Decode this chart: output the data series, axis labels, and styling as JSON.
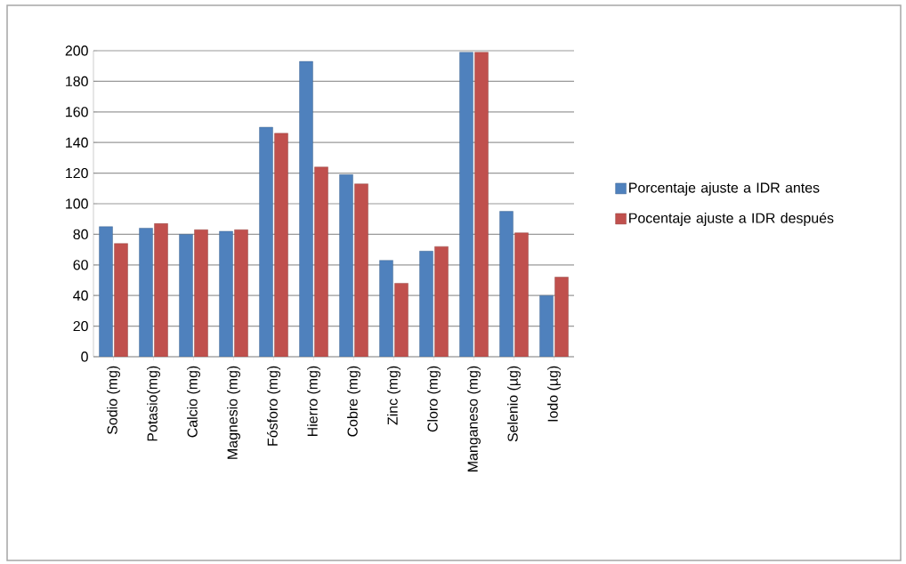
{
  "chart_data": {
    "type": "bar",
    "categories": [
      "Sodio (mg)",
      "Potasio(mg)",
      "Calcio (mg)",
      "Magnesio (mg)",
      "Fósforo (mg)",
      "Hierro (mg)",
      "Cobre (mg)",
      "Zinc (mg)",
      "Cloro (mg)",
      "Manganeso (mg)",
      "Selenio (µg)",
      "Iodo (µg)"
    ],
    "series": [
      {
        "name": "Porcentaje ajuste a IDR antes",
        "color": "#4f81bd",
        "values": [
          85,
          84,
          80,
          82,
          150,
          193,
          119,
          63,
          69,
          199,
          95,
          40
        ]
      },
      {
        "name": "Pocentaje ajuste a IDR después",
        "color": "#c0504d",
        "values": [
          74,
          87,
          83,
          83,
          146,
          124,
          113,
          48,
          72,
          199,
          81,
          52
        ]
      }
    ],
    "ylim": [
      0,
      200
    ],
    "yticks": [
      0,
      20,
      40,
      60,
      80,
      100,
      120,
      140,
      160,
      180,
      200
    ],
    "grid": "y",
    "legend": "right"
  }
}
